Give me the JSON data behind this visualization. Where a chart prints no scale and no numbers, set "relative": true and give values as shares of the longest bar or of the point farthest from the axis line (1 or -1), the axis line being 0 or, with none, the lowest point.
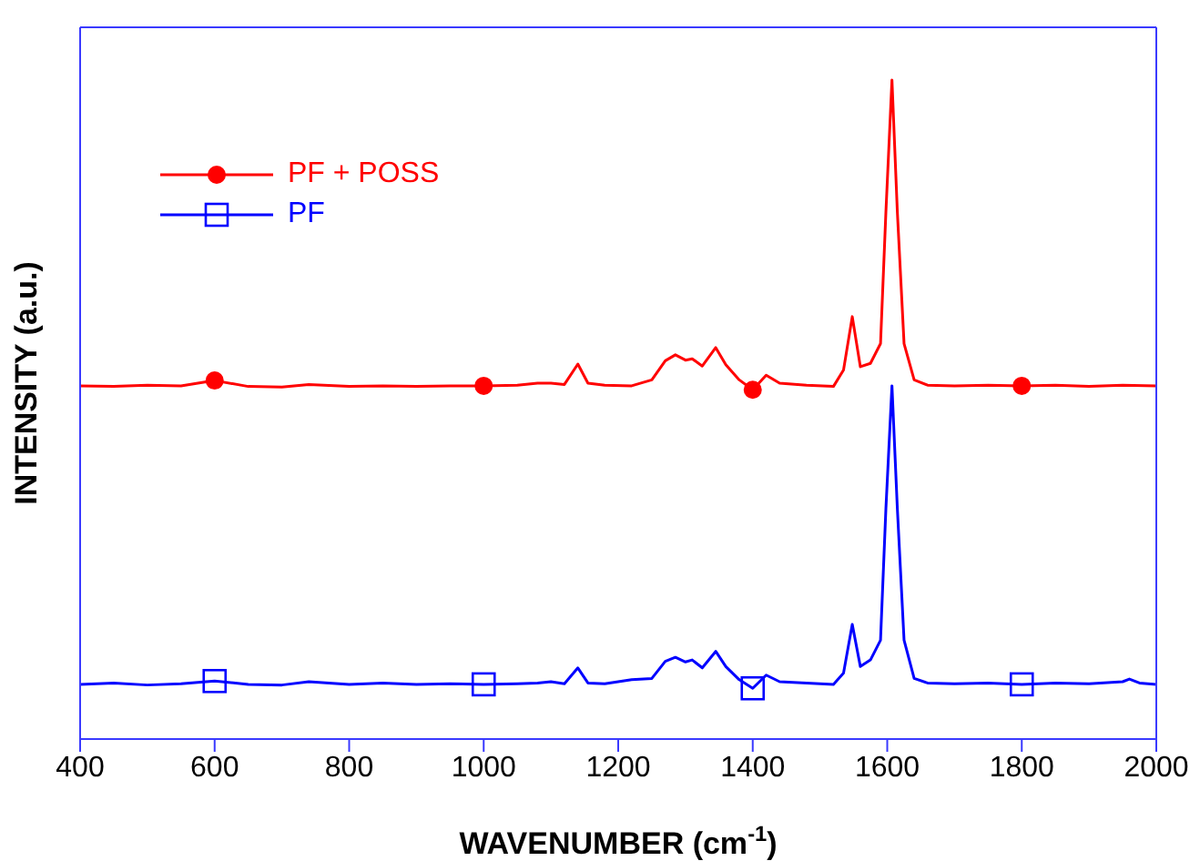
{
  "chart_data": {
    "type": "line",
    "xlabel": "WAVENUMBER (cm$^{-1}$)",
    "ylabel": "INTENSITY (a.u.)",
    "relative": true,
    "xlim": [
      400,
      2000
    ],
    "xticks": [
      400,
      600,
      800,
      1000,
      1200,
      1400,
      1600,
      1800,
      2000
    ],
    "legend": "top left",
    "line_style": "solid",
    "series": [
      {
        "name": "PF + POSS",
        "color": "#ff0000",
        "x": [
          400,
          450,
          500,
          550,
          600,
          650,
          700,
          740,
          800,
          850,
          900,
          950,
          1000,
          1050,
          1080,
          1100,
          1120,
          1140,
          1155,
          1180,
          1220,
          1250,
          1270,
          1285,
          1300,
          1310,
          1325,
          1345,
          1360,
          1380,
          1400,
          1420,
          1440,
          1480,
          1520,
          1535,
          1548,
          1560,
          1575,
          1590,
          1598,
          1607,
          1615,
          1625,
          1640,
          1660,
          1700,
          1750,
          1800,
          1850,
          1900,
          1950,
          2000
        ],
        "values": [
          0.536,
          0.535,
          0.537,
          0.536,
          0.544,
          0.535,
          0.534,
          0.538,
          0.535,
          0.536,
          0.535,
          0.536,
          0.536,
          0.537,
          0.54,
          0.54,
          0.538,
          0.569,
          0.54,
          0.537,
          0.536,
          0.545,
          0.574,
          0.583,
          0.575,
          0.577,
          0.566,
          0.594,
          0.568,
          0.545,
          0.53,
          0.552,
          0.54,
          0.537,
          0.535,
          0.56,
          0.641,
          0.565,
          0.57,
          0.6,
          0.8,
          1,
          0.8,
          0.6,
          0.545,
          0.537,
          0.536,
          0.537,
          0.536,
          0.537,
          0.535,
          0.537,
          0.536
        ]
      },
      {
        "type": "scatter",
        "color": "#ff0000",
        "marker": "circle",
        "x": [
          600,
          1000,
          1400,
          1800
        ],
        "values": [
          0.544,
          0.536,
          0.53,
          0.536
        ]
      },
      {
        "name": "PF",
        "color": "#0000ff",
        "x": [
          400,
          450,
          500,
          550,
          600,
          650,
          700,
          740,
          800,
          850,
          900,
          950,
          1000,
          1050,
          1080,
          1100,
          1120,
          1140,
          1155,
          1180,
          1220,
          1250,
          1270,
          1285,
          1300,
          1310,
          1325,
          1345,
          1360,
          1380,
          1400,
          1420,
          1440,
          1480,
          1520,
          1535,
          1548,
          1560,
          1575,
          1590,
          1598,
          1607,
          1615,
          1625,
          1640,
          1660,
          1700,
          1750,
          1800,
          1850,
          1900,
          1950,
          1960,
          1975,
          2000
        ],
        "values": [
          0.083,
          0.085,
          0.082,
          0.084,
          0.088,
          0.083,
          0.082,
          0.087,
          0.083,
          0.085,
          0.083,
          0.084,
          0.083,
          0.084,
          0.085,
          0.087,
          0.084,
          0.108,
          0.085,
          0.084,
          0.09,
          0.092,
          0.118,
          0.124,
          0.117,
          0.12,
          0.108,
          0.133,
          0.11,
          0.09,
          0.077,
          0.097,
          0.087,
          0.085,
          0.083,
          0.1,
          0.174,
          0.11,
          0.12,
          0.15,
          0.35,
          0.536,
          0.35,
          0.15,
          0.092,
          0.085,
          0.084,
          0.085,
          0.083,
          0.085,
          0.084,
          0.087,
          0.091,
          0.085,
          0.083
        ]
      },
      {
        "type": "scatter",
        "color": "#0000ff",
        "marker": "square",
        "x": [
          600,
          1000,
          1400,
          1800
        ],
        "values": [
          0.088,
          0.083,
          0.077,
          0.083
        ]
      }
    ]
  }
}
